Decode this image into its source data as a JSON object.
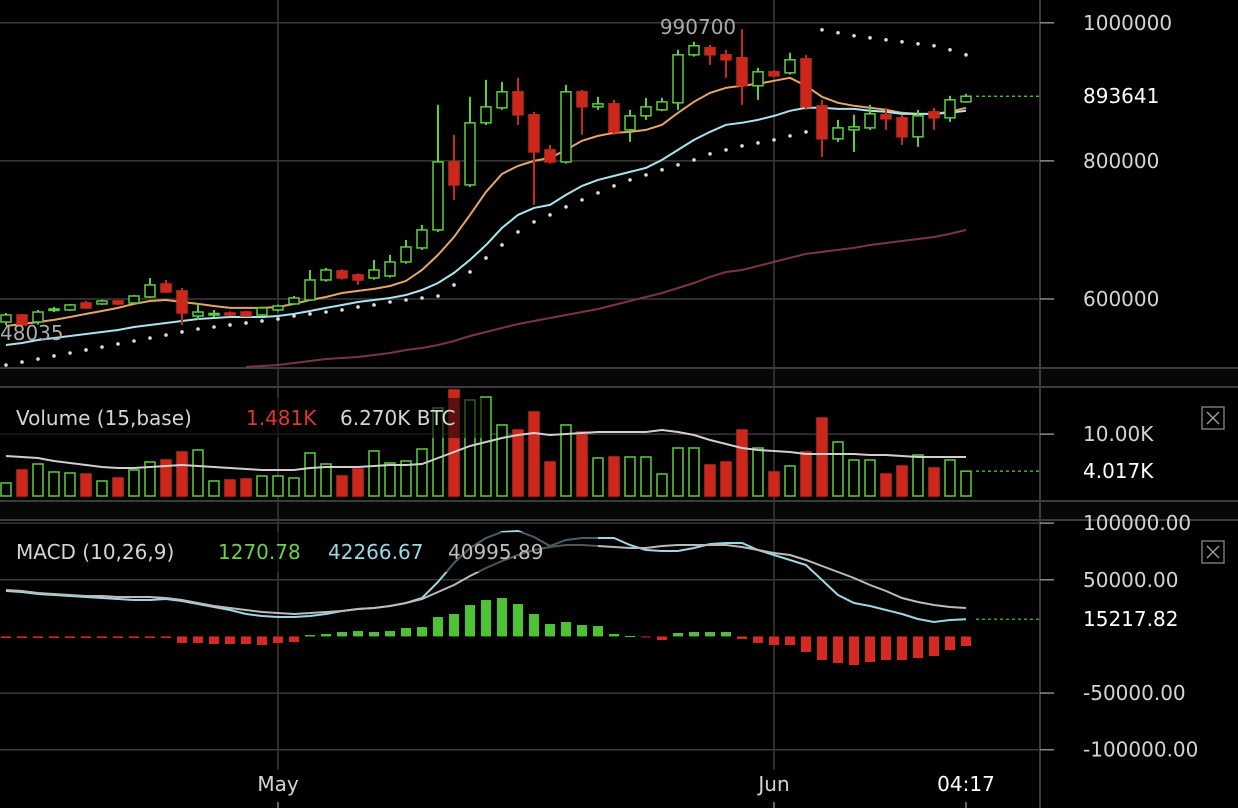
{
  "chart_data": [
    {
      "type": "candlestick",
      "open": [
        566600,
        576800,
        566600,
        584100,
        584100,
        594200,
        592800,
        597100,
        594200,
        602900,
        621700,
        611600,
        575300,
        578300,
        579700,
        581100,
        576800,
        584100,
        592800,
        598500,
        627500,
        640600,
        634800,
        630400,
        633300,
        653600,
        673900,
        700000,
        798500,
        765200,
        855100,
        876800,
        900000,
        866700,
        815900,
        798500,
        900000,
        878300,
        882600,
        844900,
        865200,
        873900,
        884100,
        953600,
        963800,
        953600,
        949300,
        908700,
        929000,
        927500,
        947800,
        879700,
        831900,
        844900,
        847800,
        866700,
        862300,
        834800,
        871000,
        862300,
        885500
      ],
      "high": [
        579700,
        578300,
        584100,
        588400,
        592800,
        597100,
        599000,
        598500,
        605700,
        630400,
        627500,
        615900,
        594200,
        584000,
        582000,
        583000,
        589000,
        592000,
        604300,
        642000,
        645000,
        643000,
        637000,
        656500,
        663800,
        685500,
        707200,
        881200,
        837700,
        892800,
        917400,
        914500,
        920300,
        871000,
        823200,
        910100,
        902900,
        892800,
        888400,
        873900,
        891300,
        891300,
        960900,
        972500,
        968100,
        960900,
        990700,
        934800,
        931000,
        956500,
        953600,
        888400,
        859400,
        866700,
        881200,
        876800,
        866700,
        873900,
        876800,
        894200,
        897100
      ],
      "low": [
        562300,
        560000,
        563000,
        581100,
        582600,
        585500,
        591300,
        591300,
        592800,
        601400,
        608700,
        562300,
        569600,
        574000,
        575000,
        574000,
        575000,
        582000,
        591300,
        597100,
        625000,
        628000,
        620300,
        628000,
        631000,
        651000,
        671000,
        697000,
        743500,
        762000,
        852000,
        873900,
        852200,
        736200,
        796000,
        796000,
        837700,
        873900,
        837700,
        827500,
        859400,
        872000,
        873900,
        951000,
        939100,
        920300,
        881200,
        888400,
        921000,
        925000,
        873900,
        805800,
        827500,
        813000,
        844900,
        844900,
        823200,
        820300,
        844900,
        856500,
        884100
      ],
      "close": [
        576800,
        562300,
        581100,
        585500,
        591300,
        587000,
        597100,
        592800,
        604300,
        620300,
        610100,
        579700,
        581100,
        579000,
        576800,
        575300,
        587000,
        589800,
        601400,
        627500,
        642000,
        630400,
        627500,
        642000,
        653600,
        675300,
        700000,
        798500,
        765200,
        855100,
        878300,
        900000,
        866700,
        813000,
        798500,
        900000,
        878300,
        882600,
        842000,
        865200,
        878300,
        885500,
        953600,
        966700,
        953600,
        946400,
        908700,
        929000,
        923200,
        946400,
        878300,
        831900,
        847800,
        849300,
        868100,
        860900,
        834800,
        865200,
        862300,
        888400,
        893641
      ],
      "up_color": "#5ccf3c",
      "down_color": "#c9281c",
      "series": [
        {
          "color": "#e8a468",
          "values": [
            560800,
            563700,
            566600,
            569600,
            573900,
            578300,
            582600,
            587000,
            592800,
            597100,
            598500,
            595600,
            592800,
            589800,
            587000,
            587000,
            587000,
            588400,
            592800,
            598500,
            602900,
            608700,
            611600,
            614500,
            618800,
            626100,
            642000,
            663800,
            689800,
            721700,
            755000,
            781100,
            792700,
            800000,
            804300,
            815900,
            829000,
            836200,
            840600,
            842000,
            844900,
            852200,
            869600,
            885500,
            898500,
            905800,
            908700,
            911600,
            915900,
            920300,
            908700,
            892800,
            884100,
            879700,
            876800,
            873900,
            869600,
            868100,
            868100,
            871000,
            876800
          ]
        },
        {
          "color": "#a8e4ee",
          "values": [
            533300,
            536200,
            540500,
            543400,
            546300,
            549300,
            552200,
            555100,
            559400,
            562300,
            565200,
            568100,
            571000,
            572400,
            573900,
            573900,
            573900,
            575300,
            578300,
            582600,
            587000,
            591300,
            595600,
            598500,
            601400,
            605800,
            613000,
            623100,
            637700,
            656500,
            678200,
            702900,
            721700,
            731900,
            736200,
            750700,
            763800,
            772400,
            778200,
            784000,
            789800,
            801400,
            815900,
            830400,
            842000,
            852200,
            855100,
            859400,
            865200,
            872500,
            876800,
            876800,
            875300,
            875300,
            872500,
            871000,
            868100,
            868100,
            868100,
            869600,
            872500
          ]
        },
        {
          "color": "#7e3440",
          "values": [
            null,
            null,
            null,
            null,
            null,
            null,
            null,
            null,
            null,
            null,
            null,
            null,
            null,
            null,
            null,
            501400,
            502900,
            504300,
            507200,
            510100,
            513000,
            514500,
            515900,
            518800,
            521700,
            526100,
            529000,
            533300,
            539100,
            546300,
            552200,
            557900,
            563700,
            568100,
            572400,
            576800,
            581100,
            585500,
            591300,
            597100,
            602900,
            608700,
            615900,
            623100,
            631900,
            639100,
            642000,
            647800,
            653600,
            659400,
            665200,
            668100,
            671000,
            673900,
            678200,
            681100,
            684000,
            686900,
            689800,
            694200,
            700000
          ]
        },
        {
          "color": "#dddddd",
          "style": "dots",
          "values": [
            504300,
            508700,
            513000,
            517400,
            521700,
            526100,
            530400,
            534800,
            539100,
            543400,
            547800,
            552200,
            556500,
            559400,
            562300,
            565200,
            568100,
            571000,
            575300,
            578300,
            581100,
            584100,
            588400,
            591300,
            595600,
            598500,
            601400,
            604300,
            620300,
            639100,
            659400,
            678200,
            697100,
            711600,
            721700,
            733300,
            743500,
            753600,
            763800,
            772400,
            779700,
            787000,
            794200,
            801400,
            810100,
            815900,
            821700,
            826000,
            830400,
            836200,
            842000,
            989800,
            985500,
            981200,
            978200,
            975400,
            972500,
            969600,
            966700,
            960900,
            953600
          ]
        }
      ],
      "annotations": [
        "990700",
        "48035"
      ],
      "last": 893641,
      "ylim": [
        500000,
        1033000
      ],
      "yticks": [
        600000,
        800000,
        1000000
      ],
      "grid": true
    },
    {
      "type": "bar",
      "title": "Volume (15,base)",
      "stats": [
        {
          "value": 1481,
          "label": "1.481K",
          "color": "#e0392c"
        },
        {
          "value": 6270,
          "label": "6.270K BTC",
          "color": "#d4d4d4"
        }
      ],
      "values": [
        2102,
        4204,
        5174,
        3881,
        3719,
        3557,
        2426,
        2911,
        4204,
        5498,
        5821,
        7115,
        7438,
        2426,
        2587,
        2749,
        3234,
        3234,
        2911,
        6953,
        5174,
        3234,
        4366,
        7277,
        5336,
        5660,
        7600,
        14230,
        17140,
        15523,
        16008,
        11481,
        10672,
        13583,
        5498,
        11481,
        10349,
        6145,
        6306,
        6306,
        6306,
        3557,
        7762,
        7762,
        5013,
        5498,
        10672,
        7762,
        3881,
        4851,
        7115,
        12613,
        8732,
        5821,
        5821,
        3557,
        4851,
        6630,
        4528,
        5821,
        4017
      ],
      "up_color": "#5ccf3c",
      "down_color": "#c9281c",
      "series": [
        {
          "color": "#cfcfcf",
          "values": [
            6468,
            6306,
            6145,
            5660,
            5336,
            5013,
            4689,
            4528,
            4528,
            4689,
            4851,
            5013,
            4851,
            4689,
            4528,
            4366,
            4204,
            4204,
            4204,
            4528,
            4689,
            4689,
            4689,
            4851,
            5013,
            5013,
            5174,
            6145,
            7115,
            8085,
            8732,
            9379,
            9864,
            10187,
            9864,
            10025,
            10187,
            10349,
            10349,
            10349,
            10349,
            10672,
            10349,
            9864,
            9055,
            8408,
            7762,
            7438,
            7277,
            7115,
            6791,
            6791,
            6791,
            6791,
            6630,
            6630,
            6468,
            6306,
            6306,
            6306,
            6306
          ]
        }
      ],
      "last": {
        "value": 4017,
        "label": "4.017K"
      },
      "ylim": [
        0,
        17460
      ],
      "yticks": [
        {
          "value": 10000,
          "label": "10.00K"
        }
      ],
      "grid": true
    },
    {
      "type": "macd",
      "title": "MACD (10,26,9)",
      "stats": [
        {
          "value": 1270.78,
          "color": "#6fcf4a"
        },
        {
          "value": 42266.67,
          "color": "#9ad8e6"
        },
        {
          "value": 40995.89,
          "color": "#bdbdbd"
        }
      ],
      "categories": [
        null,
        null,
        null,
        null,
        null,
        null,
        null,
        null,
        null,
        null,
        null,
        null,
        null,
        null,
        null,
        null,
        null,
        "May",
        null,
        null,
        null,
        null,
        null,
        null,
        null,
        null,
        null,
        null,
        null,
        null,
        null,
        null,
        null,
        null,
        null,
        null,
        null,
        null,
        null,
        null,
        null,
        null,
        null,
        null,
        null,
        null,
        null,
        null,
        "Jun",
        null,
        null,
        null,
        null,
        null,
        null,
        null,
        null,
        null,
        null,
        null,
        "04:17"
      ],
      "values": [
        -1412,
        -1412,
        -1412,
        -1412,
        -1412,
        -1412,
        -1412,
        -1412,
        -1412,
        -1412,
        -1412,
        -5825,
        -5825,
        -6708,
        -6708,
        -6708,
        -7590,
        -5825,
        -4943,
        1236,
        2118,
        3883,
        4766,
        3883,
        4766,
        7414,
        8296,
        17122,
        19770,
        27714,
        32127,
        33892,
        28596,
        19770,
        10944,
        12709,
        10062,
        9179,
        2118,
        353,
        -530,
        -3177,
        3001,
        3883,
        3883,
        3883,
        -2295,
        -5825,
        -7590,
        -7590,
        -13769,
        -20829,
        -23477,
        -25242,
        -22595,
        -20829,
        -20829,
        -19064,
        -17299,
        -12003,
        -8473
      ],
      "up_color": "#4cc234",
      "down_color": "#d42a22",
      "series": [
        {
          "color": "#9ad8e6",
          "values": [
            40070,
            39187,
            37422,
            36540,
            35657,
            34774,
            33892,
            33009,
            32127,
            32127,
            33009,
            31244,
            28596,
            25948,
            23301,
            19770,
            18005,
            17122,
            17122,
            18005,
            19770,
            22418,
            24183,
            25066,
            26831,
            29479,
            33892,
            48013,
            64783,
            78022,
            86848,
            92143,
            93026,
            87730,
            79787,
            85083,
            86848,
            86848,
            86848,
            80670,
            76257,
            75374,
            75374,
            78022,
            81552,
            82435,
            82435,
            76257,
            71844,
            67431,
            63018,
            49779,
            36540,
            29479,
            26831,
            23301,
            19770,
            15357,
            12709,
            14475,
            15218
          ]
        },
        {
          "color": "#bbbbbb",
          "values": [
            40953,
            40070,
            38305,
            37422,
            36540,
            35657,
            35657,
            34774,
            34774,
            34774,
            33892,
            32127,
            29479,
            26831,
            25066,
            23301,
            21535,
            20653,
            19770,
            20653,
            21535,
            22418,
            24183,
            25066,
            26831,
            29479,
            33009,
            39187,
            45366,
            53309,
            60370,
            66548,
            71844,
            76257,
            78905,
            80670,
            80670,
            79787,
            78905,
            78022,
            78022,
            79787,
            80670,
            80670,
            80670,
            80670,
            78905,
            76257,
            73609,
            71844,
            67431,
            62135,
            56839,
            51544,
            45366,
            40070,
            33892,
            30361,
            27714,
            25948,
            25066
          ]
        }
      ],
      "last": 15217.82,
      "ylim": [
        -102000,
        101000
      ],
      "yticks": [
        {
          "value": -100000,
          "label": "-100000.00"
        },
        {
          "value": -50000,
          "label": "-50000.00"
        },
        {
          "value": 50000,
          "label": "50000.00"
        },
        {
          "value": 100000,
          "label": "100000.00"
        }
      ],
      "grid": true
    }
  ]
}
